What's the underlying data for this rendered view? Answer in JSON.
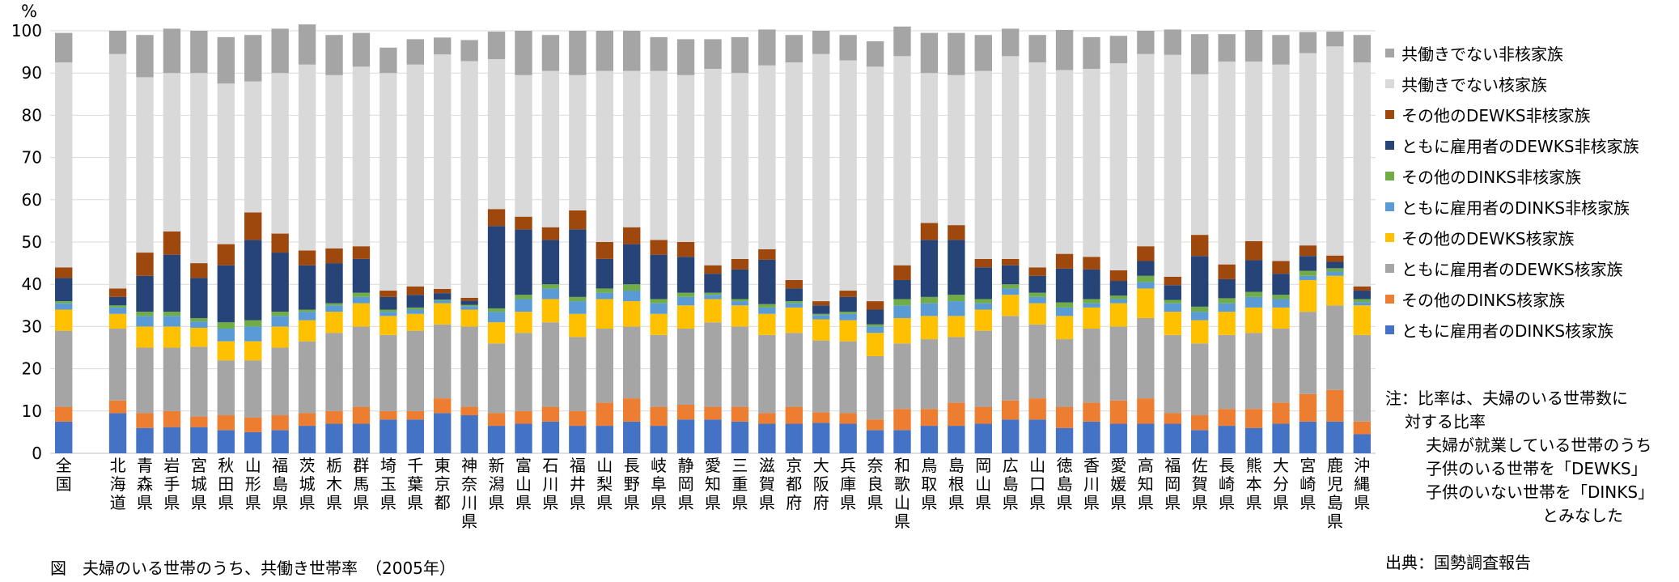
{
  "chart_data": {
    "type": "bar",
    "stacked": true,
    "unit_label": "%",
    "ylim": [
      0,
      100
    ],
    "yticks": [
      0,
      10,
      20,
      30,
      40,
      50,
      60,
      70,
      80,
      90,
      100
    ],
    "grid": true,
    "legend_position": "right",
    "categories": [
      "全国",
      "",
      "北海道",
      "青森県",
      "岩手県",
      "宮城県",
      "秋田県",
      "山形県",
      "福島県",
      "茨城県",
      "栃木県",
      "群馬県",
      "埼玉県",
      "千葉県",
      "東京都",
      "神奈川県",
      "新潟県",
      "富山県",
      "石川県",
      "福井県",
      "山梨県",
      "長野県",
      "岐阜県",
      "静岡県",
      "愛知県",
      "三重県",
      "滋賀県",
      "京都府",
      "大阪府",
      "兵庫県",
      "奈良県",
      "和歌山県",
      "鳥取県",
      "島根県",
      "岡山県",
      "広島県",
      "山口県",
      "徳島県",
      "香川県",
      "愛媛県",
      "高知県",
      "福岡県",
      "佐賀県",
      "長崎県",
      "熊本県",
      "大分県",
      "宮崎県",
      "鹿児島県",
      "沖縄県"
    ],
    "series": [
      {
        "name": "ともに雇用者のDINKS核家族",
        "color": "#4472c4",
        "values": [
          7.5,
          null,
          9.5,
          6,
          6.2,
          6.2,
          5.5,
          5,
          5.5,
          6.5,
          7,
          7,
          8,
          8,
          9.5,
          9,
          6.5,
          7,
          7.5,
          6.5,
          6.5,
          7.5,
          6.5,
          8,
          8,
          7.5,
          7,
          7,
          7.2,
          7,
          5.5,
          5.5,
          6.5,
          6.5,
          7,
          8,
          8,
          6,
          7.5,
          7,
          7,
          7,
          5.5,
          6.5,
          6,
          7,
          7.5,
          7.5,
          4.5
        ]
      },
      {
        "name": "その他のDINKS核家族",
        "color": "#ed7d31",
        "values": [
          3.5,
          null,
          3,
          3.5,
          3.8,
          2.5,
          3.5,
          3.5,
          3.5,
          3,
          3,
          4,
          2,
          2,
          3.5,
          2,
          3,
          3,
          3.5,
          3.5,
          5.5,
          5.5,
          4.5,
          3.5,
          3,
          3.5,
          2.5,
          4,
          2.5,
          2.5,
          2.5,
          5,
          4,
          5.5,
          4,
          4.5,
          5,
          5,
          4.5,
          5.5,
          6,
          2.5,
          3.5,
          4,
          4.5,
          5,
          6.5,
          7.5,
          3
        ]
      },
      {
        "name": "ともに雇用者のDEWKS核家族",
        "color": "#a5a5a5",
        "values": [
          18,
          null,
          17,
          15.5,
          15,
          16.5,
          13,
          13.5,
          16,
          17,
          18.5,
          19,
          18,
          19,
          17.5,
          19,
          16.5,
          18.5,
          20,
          17.5,
          17.5,
          17,
          17,
          18,
          20,
          19,
          18.5,
          17.5,
          17,
          17,
          15,
          15.5,
          16.5,
          15.5,
          18,
          20,
          17.5,
          16,
          17.5,
          17.5,
          19,
          18.5,
          17,
          17.5,
          18,
          17.5,
          19.5,
          20,
          20.5
        ]
      },
      {
        "name": "その他のDEWKS核家族",
        "color": "#ffc000",
        "values": [
          5,
          null,
          3.5,
          5,
          5,
          4.5,
          4.5,
          4.5,
          5,
          5,
          5,
          5.5,
          4.5,
          4,
          5,
          4,
          5,
          5,
          5.5,
          5.5,
          7,
          6,
          5,
          5.5,
          5.5,
          5,
          5,
          6,
          5,
          5,
          5.5,
          6,
          5.5,
          5,
          5,
          5,
          5,
          5.5,
          5,
          5.5,
          7,
          5.5,
          5.5,
          5.5,
          6,
          5,
          7.5,
          7,
          7
        ]
      },
      {
        "name": "ともに雇用者のDINKS非核家族",
        "color": "#5b9bd5",
        "values": [
          1.5,
          null,
          1.5,
          2.5,
          2.5,
          1.5,
          3,
          3.5,
          2.5,
          2,
          1.5,
          1.5,
          1,
          1,
          0.7,
          0.8,
          2.5,
          3,
          2.5,
          3,
          1.5,
          2.5,
          2.5,
          2,
          1,
          1,
          1.5,
          1,
          1,
          1.5,
          1.5,
          3,
          3,
          3.5,
          1.5,
          1.5,
          1.5,
          2,
          1,
          1,
          1.5,
          2,
          2,
          2,
          2.5,
          2,
          1,
          1,
          0.8
        ]
      },
      {
        "name": "その他のDINKS非核家族",
        "color": "#70ad47",
        "values": [
          0.5,
          null,
          0.5,
          1,
          1,
          0.8,
          1.5,
          1.5,
          1,
          0.5,
          0.5,
          1,
          0.5,
          0.5,
          0.2,
          0.3,
          0.8,
          1,
          1,
          1,
          1,
          1.5,
          1,
          1,
          0.5,
          0.5,
          0.8,
          0.5,
          0.3,
          0.5,
          0.5,
          1.5,
          1.5,
          1.5,
          1,
          1,
          1,
          1.2,
          1,
          0.8,
          1.5,
          0.8,
          1.2,
          1.2,
          1.2,
          1,
          1.2,
          0.8,
          0.7
        ]
      },
      {
        "name": "ともに雇用者のDEWKS非核家族",
        "color": "#264478",
        "values": [
          5.5,
          null,
          2,
          8.5,
          13.5,
          9.5,
          13.5,
          19,
          14,
          10.5,
          9.5,
          8,
          3,
          3,
          1.5,
          1,
          19.5,
          15.5,
          10.5,
          16,
          7,
          9.5,
          10.5,
          8.5,
          4.5,
          7,
          10.5,
          3,
          2,
          3.5,
          3.5,
          4.5,
          13.5,
          13,
          7.5,
          4.5,
          4,
          8,
          7,
          3.5,
          3.5,
          3.5,
          12,
          4.5,
          7.5,
          5,
          3.5,
          1.5,
          2
        ]
      },
      {
        "name": "その他のDEWKS非核家族",
        "color": "#9e480e",
        "values": [
          2.5,
          null,
          2,
          5.5,
          5.5,
          3.5,
          5,
          6.5,
          4.5,
          3.5,
          3.5,
          3,
          1.5,
          2,
          1,
          0.7,
          4,
          3,
          3,
          4.5,
          4,
          4,
          3.5,
          3.5,
          2,
          2.5,
          2.5,
          2,
          1,
          1.5,
          2,
          3.5,
          4,
          3.5,
          2,
          1.5,
          2,
          3.5,
          3,
          2.5,
          3.5,
          2,
          5,
          3.5,
          4.5,
          3,
          2.5,
          1.5,
          1
        ]
      },
      {
        "name": "共働きでない核家族",
        "color": "#d9d9d9",
        "values": [
          48.5,
          null,
          55.5,
          41.5,
          37.5,
          45,
          38,
          31,
          38,
          44,
          41,
          42.5,
          51.5,
          52.5,
          55.5,
          56,
          35.5,
          33.5,
          37,
          32,
          40.5,
          37,
          40,
          39.5,
          46.5,
          44,
          43.5,
          51.5,
          58.5,
          54.5,
          55.5,
          49.5,
          35.5,
          35.5,
          44.5,
          48,
          48.5,
          43.5,
          44.5,
          49,
          45.5,
          52.5,
          38,
          48,
          42.5,
          46.5,
          45.5,
          49.5,
          53
        ]
      },
      {
        "name": "共働きでない非核家族",
        "color": "#a5a5a5",
        "values": [
          7,
          null,
          5.5,
          10,
          10.5,
          10,
          11,
          11,
          10.5,
          9.5,
          9.5,
          8,
          6,
          6,
          4,
          5,
          6.5,
          10.5,
          8.5,
          10.5,
          9.5,
          9.5,
          8,
          8.5,
          7,
          8.5,
          8.5,
          6.5,
          5.5,
          6,
          6,
          7,
          9.5,
          10,
          8.5,
          6.5,
          6.5,
          9.5,
          7.5,
          6.5,
          5.5,
          6,
          9.5,
          6.5,
          7.5,
          7,
          5,
          3.5,
          6.5
        ]
      }
    ]
  },
  "notes": [
    "注：比率は、夫婦のいる世帯数に",
    "対する比率",
    "夫婦が就業している世帯のうち",
    "子供のいる世帯を「DEWKS」",
    "子供のいない世帯を「DINKS」",
    "とみなした"
  ],
  "caption": "図　夫婦のいる世帯のうち、共働き世帯率　（2005年）",
  "source": "出典：国勢調査報告"
}
